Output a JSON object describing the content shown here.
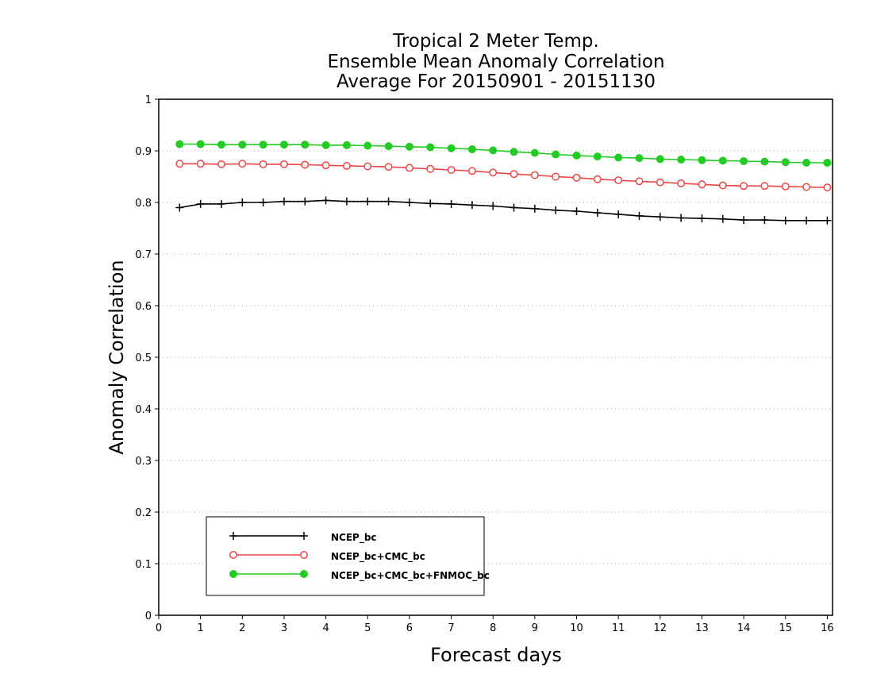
{
  "chart_data": {
    "type": "line",
    "title_lines": [
      "Tropical 2 Meter Temp.",
      "Ensemble Mean Anomaly Correlation",
      "Average For 20150901 - 20151130"
    ],
    "xlabel": "Forecast days",
    "ylabel": "Anomaly Correlation",
    "xlim": [
      0,
      16.125
    ],
    "ylim": [
      0,
      1
    ],
    "xticks": [
      0,
      1,
      2,
      3,
      4,
      5,
      6,
      7,
      8,
      9,
      10,
      11,
      12,
      13,
      14,
      15,
      16
    ],
    "yticks": [
      0,
      0.1,
      0.2,
      0.3,
      0.4,
      0.5,
      0.6,
      0.7,
      0.8,
      0.9,
      1
    ],
    "ytick_labels": [
      "0",
      "0.1",
      "0.2",
      "0.3",
      "0.4",
      "0.5",
      "0.6",
      "0.7",
      "0.8",
      "0.9",
      "1"
    ],
    "grid": true,
    "legend_position": "bottom-left",
    "x": [
      0.5,
      1,
      1.5,
      2,
      2.5,
      3,
      3.5,
      4,
      4.5,
      5,
      5.5,
      6,
      6.5,
      7,
      7.5,
      8,
      8.5,
      9,
      9.5,
      10,
      10.5,
      11,
      11.5,
      12,
      12.5,
      13,
      13.5,
      14,
      14.5,
      15,
      15.5,
      16
    ],
    "series": [
      {
        "name": "NCEP_bc",
        "color": "#000000",
        "marker": "plus",
        "values": [
          0.79,
          0.797,
          0.797,
          0.8,
          0.8,
          0.802,
          0.802,
          0.804,
          0.802,
          0.802,
          0.802,
          0.8,
          0.798,
          0.797,
          0.795,
          0.793,
          0.79,
          0.788,
          0.785,
          0.783,
          0.78,
          0.777,
          0.774,
          0.772,
          0.77,
          0.769,
          0.768,
          0.766,
          0.766,
          0.765,
          0.765,
          0.765
        ]
      },
      {
        "name": "NCEP_bc+CMC_bc",
        "color": "#ee4444",
        "marker": "open-circle",
        "values": [
          0.875,
          0.875,
          0.874,
          0.875,
          0.874,
          0.874,
          0.873,
          0.872,
          0.871,
          0.87,
          0.869,
          0.867,
          0.865,
          0.863,
          0.861,
          0.858,
          0.855,
          0.853,
          0.85,
          0.848,
          0.845,
          0.843,
          0.841,
          0.839,
          0.837,
          0.835,
          0.833,
          0.832,
          0.832,
          0.831,
          0.83,
          0.829
        ]
      },
      {
        "name": "NCEP_bc+CMC_bc+FNMOC_bc",
        "color": "#22cc22",
        "marker": "filled-circle",
        "values": [
          0.913,
          0.913,
          0.912,
          0.912,
          0.912,
          0.912,
          0.912,
          0.911,
          0.911,
          0.91,
          0.909,
          0.908,
          0.907,
          0.905,
          0.903,
          0.901,
          0.898,
          0.896,
          0.893,
          0.891,
          0.889,
          0.887,
          0.886,
          0.884,
          0.883,
          0.882,
          0.881,
          0.88,
          0.879,
          0.878,
          0.877,
          0.877
        ]
      }
    ]
  }
}
